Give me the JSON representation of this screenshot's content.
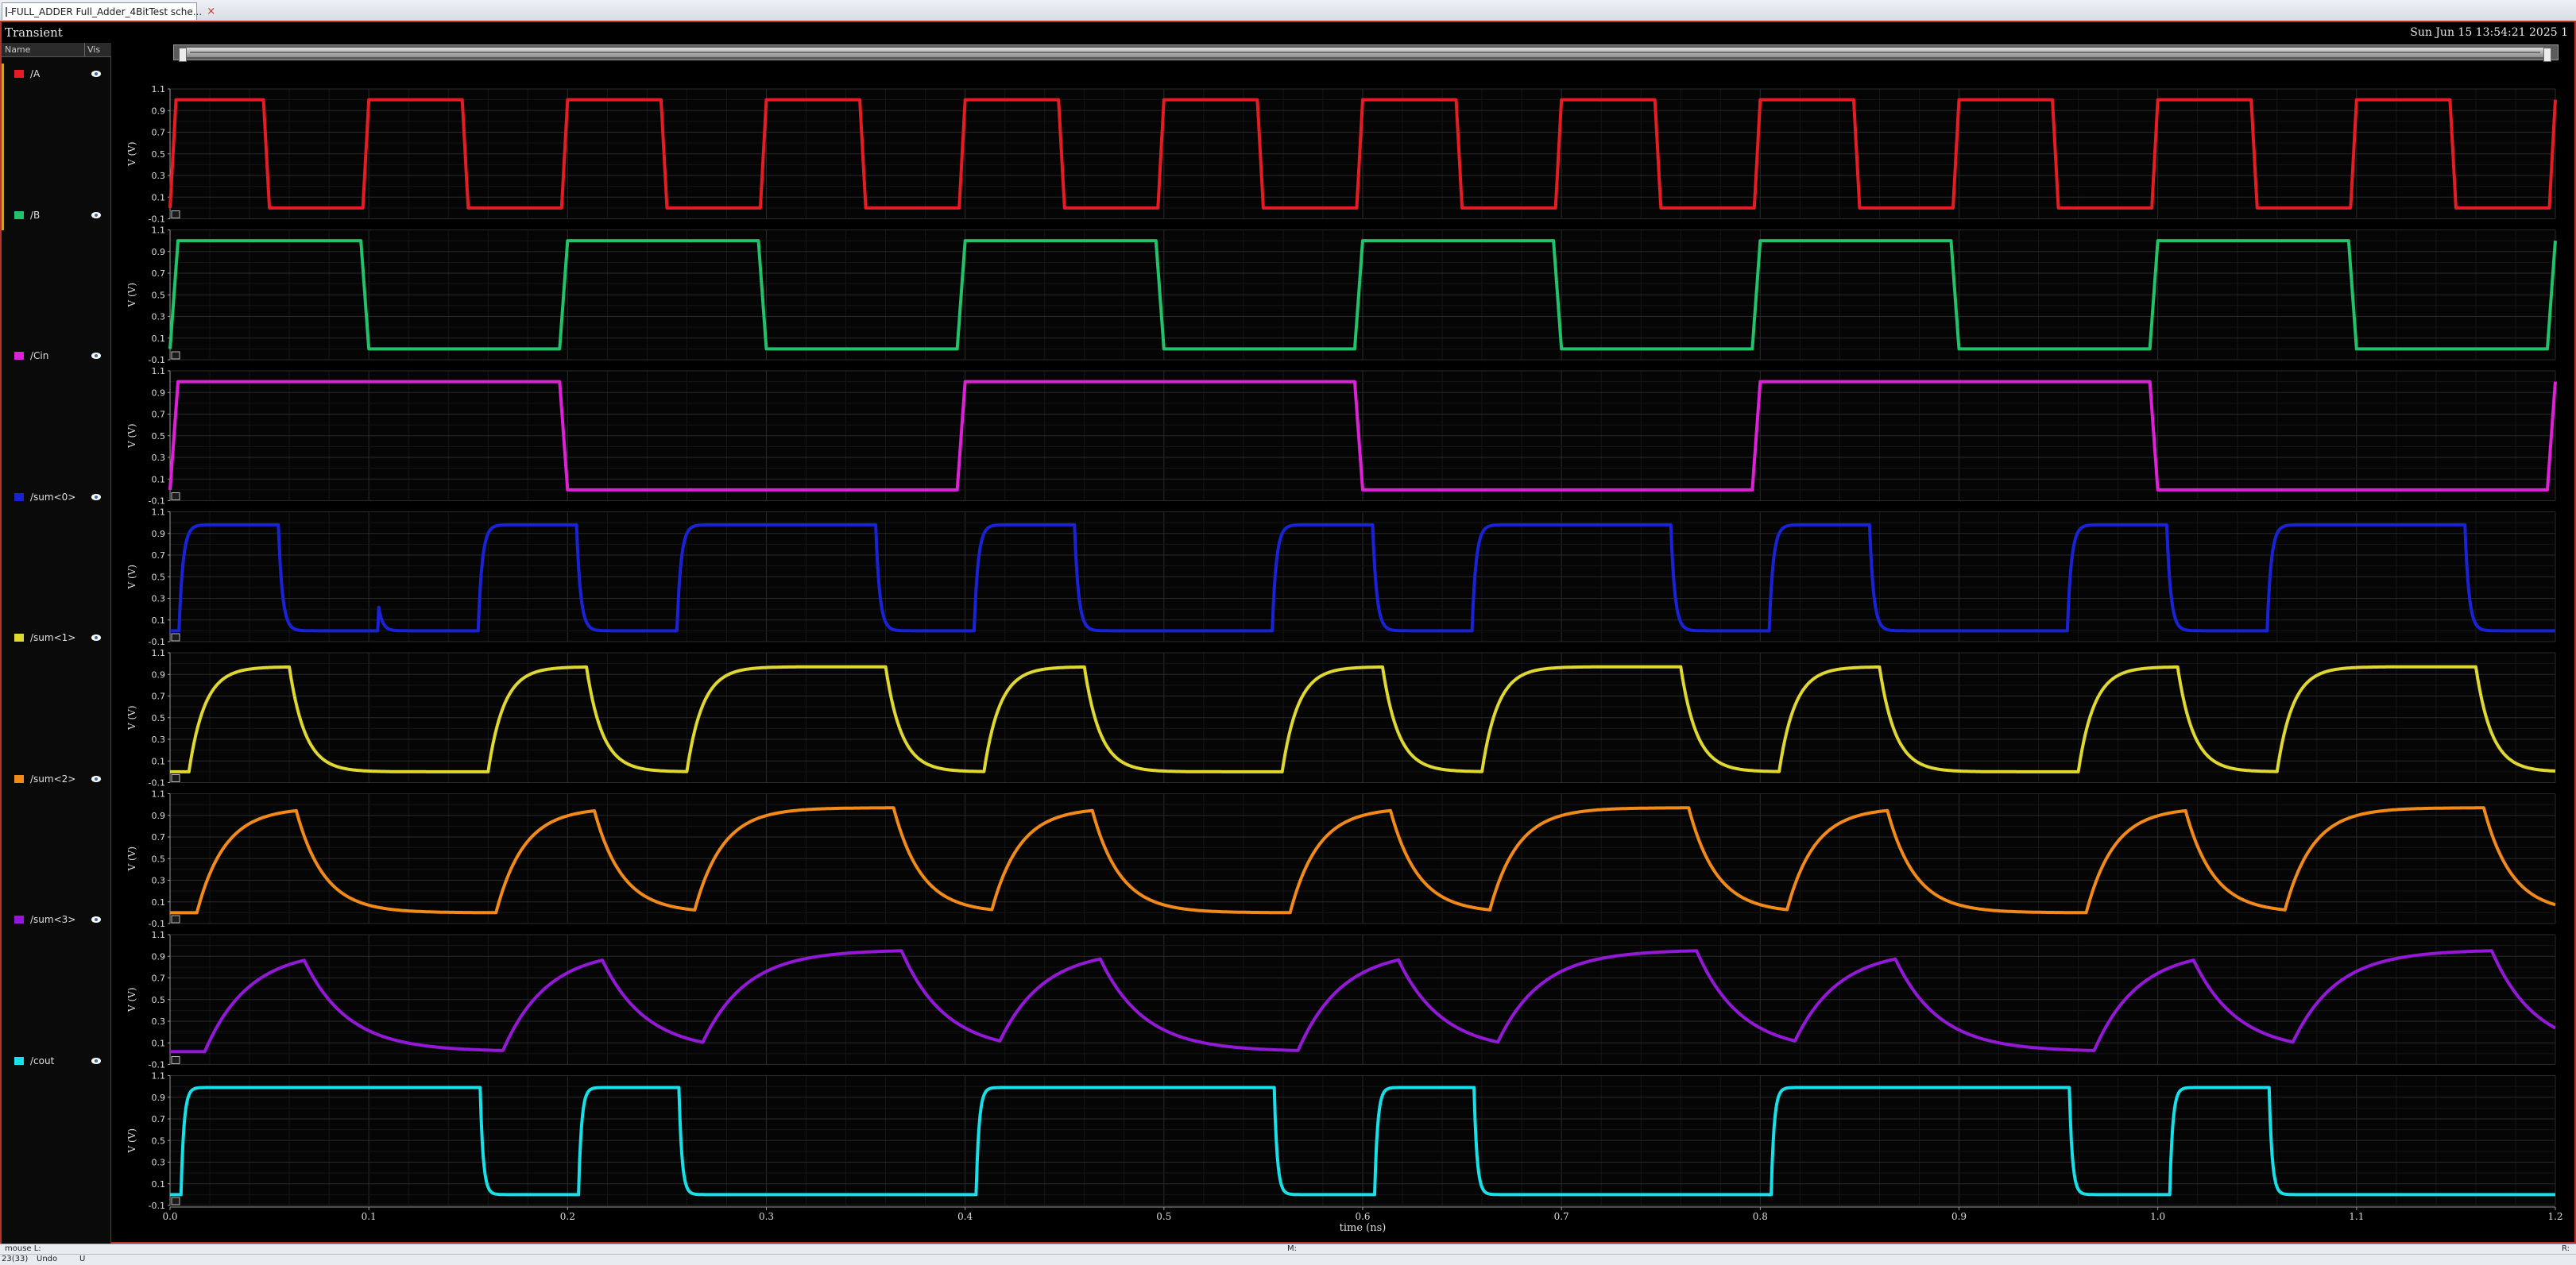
{
  "tab": {
    "label": "FULL_ADDER Full_Adder_4BitTest sche...",
    "close": "×"
  },
  "window": {
    "title": "Transient",
    "datetime": "Sun Jun 15 13:54:21 2025  1"
  },
  "name_panel": {
    "col_name": "Name",
    "col_vis": "Vis"
  },
  "status": {
    "mouse": "mouse L:",
    "mid": "M:",
    "right": "R:",
    "counter": "23(33)",
    "undo": "Undo",
    "key": "U"
  },
  "colors": {
    "border": "#b8312b",
    "grid": "#1d1d1d",
    "axis": "#9a9a9a",
    "text": "#dcdcdc"
  },
  "chart_data": {
    "type": "line",
    "xlabel": "time (ns)",
    "xlim": [
      0.0,
      1.2
    ],
    "xticks": [
      "0.0",
      "0.1",
      "0.2",
      "0.3",
      "0.4",
      "0.5",
      "0.6",
      "0.7",
      "0.8",
      "0.9",
      "1.0",
      "1.1",
      "1.2"
    ],
    "ylabel": "V (V)",
    "ylim": [
      -0.1,
      1.1
    ],
    "yticks": [
      "1.1",
      "0.9",
      "0.7",
      "0.5",
      "0.3",
      "0.1",
      "-0.1"
    ],
    "series": [
      {
        "name": "/A",
        "color": "#e51c23",
        "kind": "square",
        "period": 0.1,
        "duty": 0.5,
        "offset": 0.0,
        "rise": 0.003,
        "high": 1.0,
        "low": 0.0
      },
      {
        "name": "/B",
        "color": "#22c26a",
        "kind": "square",
        "period": 0.2,
        "duty": 0.5,
        "offset": 0.0,
        "rise": 0.004,
        "high": 1.0,
        "low": 0.0
      },
      {
        "name": "/Cin",
        "color": "#e020d8",
        "kind": "square",
        "period": 0.4,
        "duty": 0.5,
        "offset": 0.0,
        "rise": 0.004,
        "high": 1.0,
        "low": 0.0
      },
      {
        "name": "/sum<0>",
        "color": "#1a22d8",
        "kind": "logic",
        "signal": "sum0",
        "tau": 0.002,
        "delay": 0.005,
        "high": 0.98,
        "low": 0.0
      },
      {
        "name": "/sum<1>",
        "color": "#e0d830",
        "kind": "logic",
        "signal": "sum0",
        "tau": 0.008,
        "delay": 0.01,
        "high": 0.97,
        "low": 0.0
      },
      {
        "name": "/sum<2>",
        "color": "#f28a1a",
        "kind": "logic",
        "signal": "sum0",
        "tau": 0.014,
        "delay": 0.014,
        "high": 0.97,
        "low": 0.0
      },
      {
        "name": "/sum<3>",
        "color": "#9418d8",
        "kind": "logic",
        "signal": "sum0",
        "tau": 0.022,
        "delay": 0.018,
        "high": 0.96,
        "low": 0.02
      },
      {
        "name": "/cout",
        "color": "#18e0e8",
        "kind": "logic",
        "signal": "cout",
        "tau": 0.0015,
        "delay": 0.006,
        "high": 0.99,
        "low": 0.0
      }
    ]
  }
}
